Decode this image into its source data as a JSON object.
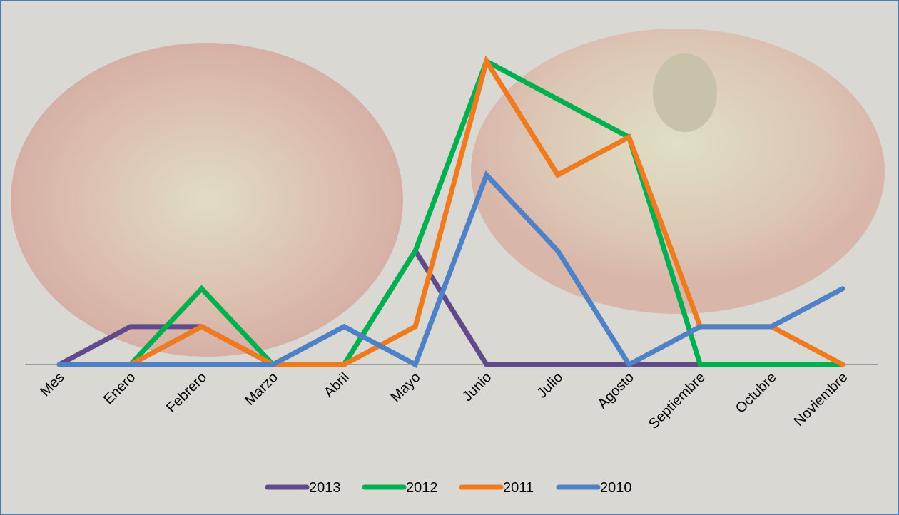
{
  "chart_data": {
    "type": "line",
    "categories": [
      "Mes",
      "Enero",
      "Febrero",
      "Marzo",
      "Abril",
      "Mayo",
      "Junio",
      "Julio",
      "Agosto",
      "Septiembre",
      "Octubre",
      "Noviembre"
    ],
    "series": [
      {
        "name": "2013",
        "color": "#604a8c",
        "values": [
          0,
          1,
          1,
          0,
          0,
          3,
          0,
          0,
          0,
          0,
          null,
          null
        ]
      },
      {
        "name": "2012",
        "color": "#00b050",
        "values": [
          null,
          0,
          2,
          0,
          0,
          3,
          8,
          7,
          6,
          0,
          0,
          0
        ]
      },
      {
        "name": "2011",
        "color": "#f07b1e",
        "values": [
          null,
          0,
          1,
          0,
          0,
          1,
          8,
          5,
          6,
          1,
          1,
          0
        ]
      },
      {
        "name": "2010",
        "color": "#4f81c6",
        "values": [
          0,
          0,
          0,
          0,
          1,
          0,
          5,
          3,
          0,
          1,
          1,
          2
        ]
      }
    ],
    "legend": "bottom"
  }
}
